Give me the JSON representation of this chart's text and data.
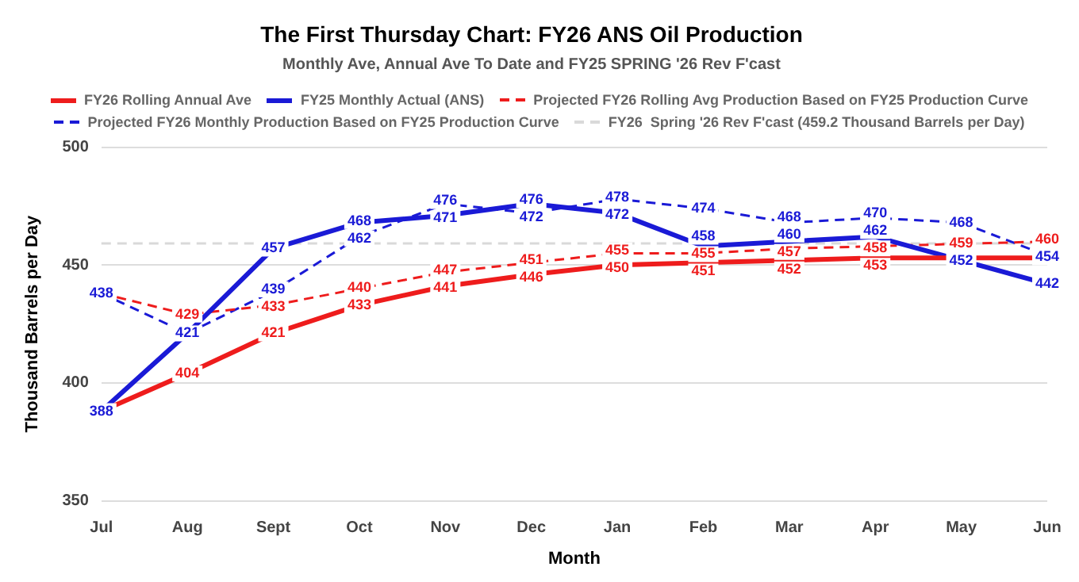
{
  "chart_data": {
    "type": "line",
    "title": "The First Thursday Chart: FY26 ANS Oil Production",
    "subtitle": "Monthly Ave, Annual Ave To Date and FY25 SPRING '26 Rev F'cast",
    "xlabel": "Month",
    "ylabel": "Thousand Barrels per Day",
    "categories": [
      "Jul",
      "Aug",
      "Sept",
      "Oct",
      "Nov",
      "Dec",
      "Jan",
      "Feb",
      "Mar",
      "Apr",
      "May",
      "Jun"
    ],
    "series": [
      {
        "name": "FY26 Rolling Annual Ave",
        "color": "#ee1c1c",
        "line_style": "solid",
        "values": [
          388,
          404,
          421,
          433,
          441,
          446,
          450,
          451,
          452,
          453,
          453,
          453
        ],
        "value_labels": [
          null,
          "404",
          "421",
          "433",
          "441",
          "446",
          "450",
          "451",
          "452",
          "453",
          null,
          null
        ]
      },
      {
        "name": "FY25 Monthly Actual (ANS)",
        "color": "#1a1ad6",
        "line_style": "solid",
        "values": [
          388,
          421,
          457,
          468,
          471,
          476,
          472,
          458,
          460,
          462,
          452,
          442
        ],
        "value_labels": [
          "388",
          "421",
          "457",
          "468",
          "471",
          "476",
          "472",
          "458",
          "460",
          "462",
          "452",
          "442"
        ]
      },
      {
        "name": "Projected FY26 Rolling Avg Production Based on FY25 Production Curve",
        "color": "#ee1c1c",
        "line_style": "dashed",
        "values": [
          438,
          429,
          433,
          440,
          447,
          451,
          455,
          455,
          457,
          458,
          459,
          460
        ],
        "value_labels": [
          null,
          "429",
          "433",
          "440",
          "447",
          "451",
          "455",
          "455",
          "457",
          "458",
          "459",
          "460"
        ]
      },
      {
        "name": "Projected FY26 Monthly Production Based on FY25 Production Curve",
        "color": "#1a1ad6",
        "line_style": "dashed",
        "values": [
          438,
          421,
          439,
          462,
          476,
          472,
          478,
          474,
          468,
          470,
          468,
          454
        ],
        "value_labels": [
          "438",
          null,
          "439",
          "462",
          "476",
          "472",
          "478",
          "474",
          "468",
          "470",
          "468",
          "454"
        ]
      }
    ],
    "ref_lines": [
      {
        "axis": "y",
        "value": 459.2,
        "label": "FY26  Spring '26 Rev F'cast (459.2 Thousand Barrels per Day)",
        "color": "#d9d9d9",
        "line_style": "dashed"
      }
    ],
    "ylim": [
      350,
      500
    ],
    "yticks": [
      350,
      400,
      450,
      500
    ],
    "grid": "y",
    "legend": "top"
  }
}
